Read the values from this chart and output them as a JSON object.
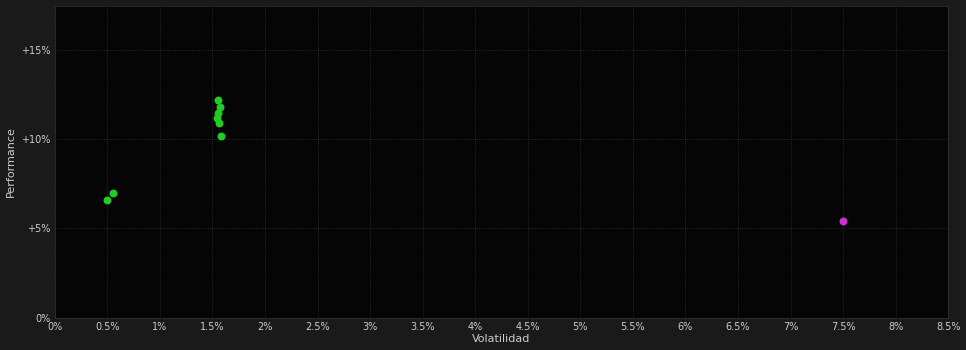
{
  "background_color": "#1a1a1a",
  "plot_bg_color": "#050505",
  "grid_color": "#333333",
  "grid_linestyle": ":",
  "xlabel": "Volatilidad",
  "ylabel": "Performance",
  "xlabel_color": "#cccccc",
  "ylabel_color": "#cccccc",
  "tick_color": "#cccccc",
  "xlim": [
    0.0,
    0.085
  ],
  "ylim": [
    0.0,
    0.175
  ],
  "xticks": [
    0.0,
    0.005,
    0.01,
    0.015,
    0.02,
    0.025,
    0.03,
    0.035,
    0.04,
    0.045,
    0.05,
    0.055,
    0.06,
    0.065,
    0.07,
    0.075,
    0.08,
    0.085
  ],
  "xtick_labels": [
    "0%",
    "0.5%",
    "1%",
    "1.5%",
    "2%",
    "2.5%",
    "3%",
    "3.5%",
    "4%",
    "4.5%",
    "5%",
    "5.5%",
    "6%",
    "6.5%",
    "7%",
    "7.5%",
    "8%",
    "8.5%"
  ],
  "yticks": [
    0.0,
    0.05,
    0.1,
    0.15
  ],
  "ytick_labels": [
    "0%",
    "+5%",
    "+10%",
    "+15%"
  ],
  "green_points": [
    [
      0.0155,
      0.122
    ],
    [
      0.0157,
      0.118
    ],
    [
      0.0155,
      0.115
    ],
    [
      0.0154,
      0.112
    ],
    [
      0.0156,
      0.109
    ],
    [
      0.0158,
      0.102
    ],
    [
      0.0055,
      0.07
    ],
    [
      0.005,
      0.066
    ]
  ],
  "magenta_points": [
    [
      0.075,
      0.054
    ]
  ],
  "green_color": "#22cc22",
  "magenta_color": "#cc33cc",
  "marker_size": 22
}
